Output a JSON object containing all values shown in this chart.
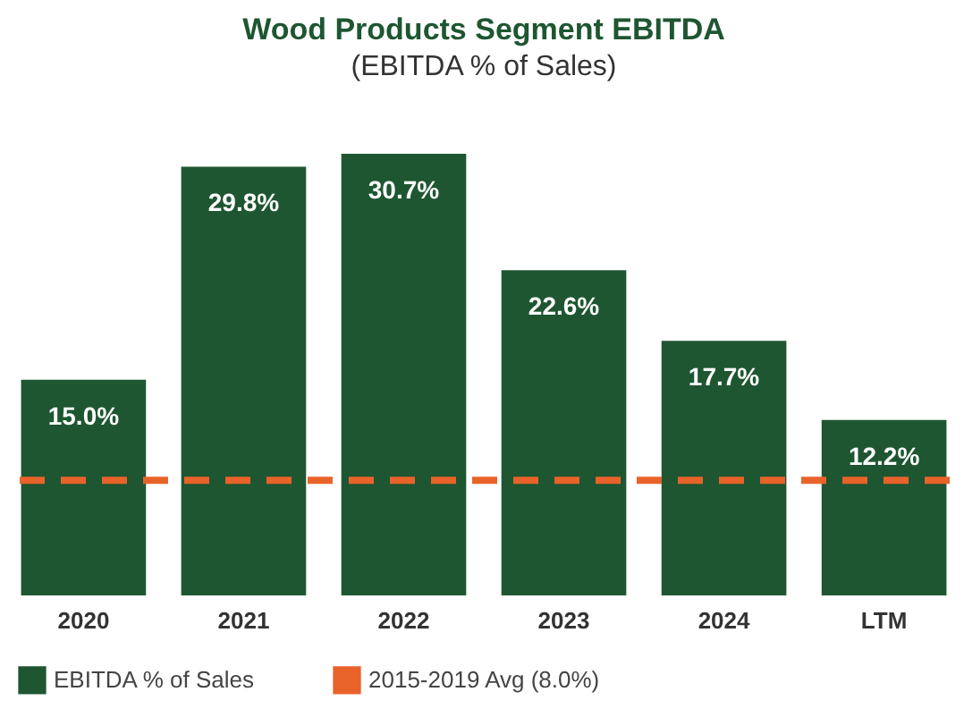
{
  "chart_data": {
    "type": "bar",
    "title": "Wood Products Segment EBITDA",
    "subtitle": "(EBITDA % of Sales)",
    "categories": [
      "2020",
      "2021",
      "2022",
      "2023",
      "2024",
      "LTM"
    ],
    "series": [
      {
        "name": "EBITDA % of Sales",
        "color": "#1e5631",
        "values": [
          15.0,
          29.8,
          30.7,
          22.6,
          17.7,
          12.2
        ],
        "value_labels": [
          "15.0%",
          "29.8%",
          "30.7%",
          "22.6%",
          "17.7%",
          "12.2%"
        ]
      }
    ],
    "ref_lines": [
      {
        "axis": "y",
        "value": 8.0,
        "label": "2015-2019 Avg (8.0%)",
        "color": "#e8632a",
        "line_style": "dashed"
      }
    ],
    "legend": "bottom",
    "grid": false
  }
}
